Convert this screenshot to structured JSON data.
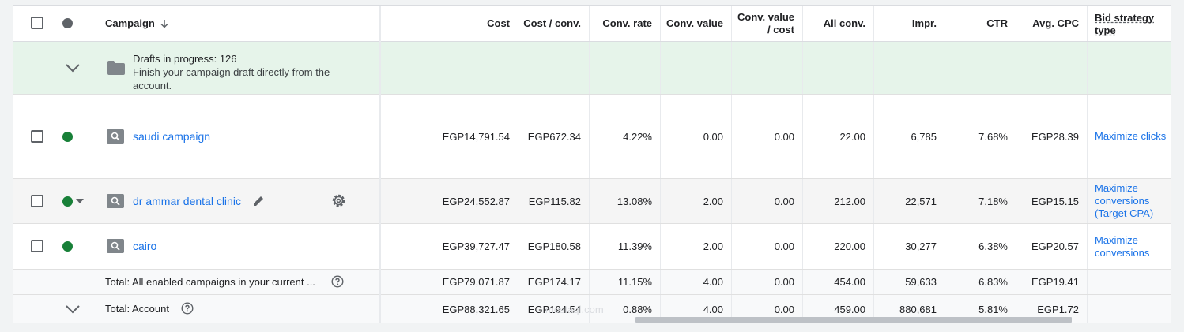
{
  "header": {
    "campaign": "Campaign",
    "cost": "Cost",
    "cost_conv": "Cost / conv.",
    "conv_rate": "Conv. rate",
    "conv_value": "Conv. value",
    "conv_value_cost": "Conv. value / cost",
    "all_conv": "All conv.",
    "impr": "Impr.",
    "ctr": "CTR",
    "avg_cpc": "Avg. CPC",
    "bid_strategy": "Bid strategy type"
  },
  "drafts": {
    "title": "Drafts in progress: 126",
    "desc": "Finish your campaign draft directly from the account."
  },
  "rows": [
    {
      "name": "saudi campaign",
      "cost": "EGP14,791.54",
      "cost_conv": "EGP672.34",
      "conv_rate": "4.22%",
      "conv_value": "0.00",
      "value_cost": "0.00",
      "all_conv": "22.00",
      "impr": "6,785",
      "ctr": "7.68%",
      "avg_cpc": "EGP28.39",
      "bid": "Maximize clicks"
    },
    {
      "name": "dr ammar dental clinic",
      "cost": "EGP24,552.87",
      "cost_conv": "EGP115.82",
      "conv_rate": "13.08%",
      "conv_value": "2.00",
      "value_cost": "0.00",
      "all_conv": "212.00",
      "impr": "22,571",
      "ctr": "7.18%",
      "avg_cpc": "EGP15.15",
      "bid": "Maximize conversions (Target CPA)"
    },
    {
      "name": "cairo",
      "cost": "EGP39,727.47",
      "cost_conv": "EGP180.58",
      "conv_rate": "11.39%",
      "conv_value": "2.00",
      "value_cost": "0.00",
      "all_conv": "220.00",
      "impr": "30,277",
      "ctr": "6.38%",
      "avg_cpc": "EGP20.57",
      "bid": "Maximize conversions"
    }
  ],
  "totals": [
    {
      "label": "Total: All enabled campaigns in your current ...",
      "cost": "EGP79,071.87",
      "cost_conv": "EGP174.17",
      "conv_rate": "11.15%",
      "conv_value": "4.00",
      "value_cost": "0.00",
      "all_conv": "454.00",
      "impr": "59,633",
      "ctr": "6.83%",
      "avg_cpc": "EGP19.41"
    },
    {
      "label": "Total: Account",
      "cost": "EGP88,321.65",
      "cost_conv": "EGP194.54",
      "conv_rate": "0.88%",
      "conv_value": "4.00",
      "value_cost": "0.00",
      "all_conv": "459.00",
      "impr": "880,681",
      "ctr": "5.81%",
      "avg_cpc": "EGP1.72"
    }
  ],
  "watermark": "mostaql.com",
  "colors": {
    "accent": "#1a73e8",
    "enabled": "#188038",
    "drafts_bg": "#e6f4ea"
  }
}
